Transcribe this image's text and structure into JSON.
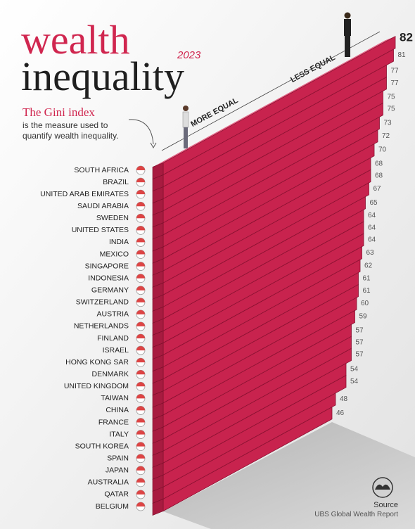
{
  "chart_data": {
    "type": "bar",
    "title": [
      "wealth",
      "inequality"
    ],
    "subtitle": "2023",
    "annotation": {
      "heading": "The Gini index",
      "text": "is the measure used to quantify wealth inequality."
    },
    "axis_labels": {
      "low": "MORE EQUAL",
      "high": "LESS EQUAL"
    },
    "source_label": "Source",
    "source": "UBS Global Wealth Report",
    "color": "#c8234e",
    "categories": [
      "SOUTH AFRICA",
      "BRAZIL",
      "UNITED ARAB EMIRATES",
      "SAUDI ARABIA",
      "SWEDEN",
      "UNITED STATES",
      "INDIA",
      "MEXICO",
      "SINGAPORE",
      "INDONESIA",
      "GERMANY",
      "SWITZERLAND",
      "AUSTRIA",
      "NETHERLANDS",
      "FINLAND",
      "ISRAEL",
      "HONG KONG SAR",
      "DENMARK",
      "UNITED KINGDOM",
      "TAIWAN",
      "CHINA",
      "FRANCE",
      "ITALY",
      "SOUTH KOREA",
      "SPAIN",
      "JAPAN",
      "AUSTRALIA",
      "QATAR",
      "BELGIUM"
    ],
    "values": [
      82,
      81,
      77,
      77,
      75,
      75,
      73,
      72,
      70,
      68,
      68,
      67,
      65,
      64,
      64,
      64,
      63,
      62,
      61,
      61,
      60,
      59,
      57,
      57,
      57,
      54,
      54,
      48,
      46
    ]
  }
}
